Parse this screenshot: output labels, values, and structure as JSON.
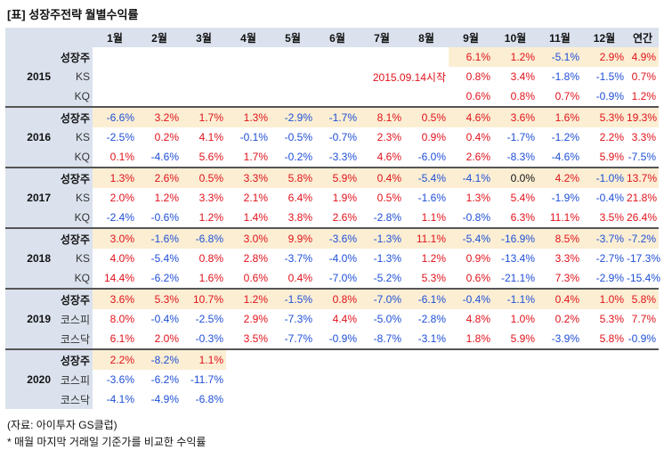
{
  "title": "[표] 성장주전략 월별수익률",
  "columns": [
    "1월",
    "2월",
    "3월",
    "4월",
    "5월",
    "6월",
    "7월",
    "8월",
    "9월",
    "10월",
    "11월",
    "12월",
    "연간"
  ],
  "note_2015": "2015.09.14시작",
  "years": [
    {
      "year": "2015",
      "rows": [
        {
          "label": "성장주",
          "values": [
            "",
            "",
            "",
            "",
            "",
            "",
            "",
            "",
            "6.1%",
            "1.2%",
            "-5.1%",
            "2.9%",
            "4.9%"
          ]
        },
        {
          "label": "KS",
          "values": [
            "",
            "",
            "",
            "",
            "",
            "",
            "",
            "",
            "0.8%",
            "3.4%",
            "-1.8%",
            "-1.5%",
            "0.7%"
          ]
        },
        {
          "label": "KQ",
          "values": [
            "",
            "",
            "",
            "",
            "",
            "",
            "",
            "",
            "0.6%",
            "0.8%",
            "0.7%",
            "-0.9%",
            "1.2%"
          ]
        }
      ]
    },
    {
      "year": "2016",
      "rows": [
        {
          "label": "성장주",
          "values": [
            "-6.6%",
            "3.2%",
            "1.7%",
            "1.3%",
            "-2.9%",
            "-1.7%",
            "8.1%",
            "0.5%",
            "4.6%",
            "3.6%",
            "1.6%",
            "5.3%",
            "19.3%"
          ]
        },
        {
          "label": "KS",
          "values": [
            "-2.5%",
            "0.2%",
            "4.1%",
            "-0.1%",
            "-0.5%",
            "-0.7%",
            "2.3%",
            "0.9%",
            "0.4%",
            "-1.7%",
            "-1.2%",
            "2.2%",
            "3.3%"
          ]
        },
        {
          "label": "KQ",
          "values": [
            "0.1%",
            "-4.6%",
            "5.6%",
            "1.7%",
            "-0.2%",
            "-3.3%",
            "4.6%",
            "-6.0%",
            "2.6%",
            "-8.3%",
            "-4.6%",
            "5.9%",
            "-7.5%"
          ]
        }
      ]
    },
    {
      "year": "2017",
      "rows": [
        {
          "label": "성장주",
          "values": [
            "1.3%",
            "2.6%",
            "0.5%",
            "3.3%",
            "5.8%",
            "5.9%",
            "0.4%",
            "-5.4%",
            "-4.1%",
            "0.0%",
            "4.2%",
            "-1.0%",
            "13.7%"
          ]
        },
        {
          "label": "KS",
          "values": [
            "2.0%",
            "1.2%",
            "3.3%",
            "2.1%",
            "6.4%",
            "1.9%",
            "0.5%",
            "-1.6%",
            "1.3%",
            "5.4%",
            "-1.9%",
            "-0.4%",
            "21.8%"
          ]
        },
        {
          "label": "KQ",
          "values": [
            "-2.4%",
            "-0.6%",
            "1.2%",
            "1.4%",
            "3.8%",
            "2.6%",
            "-2.8%",
            "1.1%",
            "-0.8%",
            "6.3%",
            "11.1%",
            "3.5%",
            "26.4%"
          ]
        }
      ]
    },
    {
      "year": "2018",
      "rows": [
        {
          "label": "성장주",
          "values": [
            "3.0%",
            "-1.6%",
            "-6.8%",
            "3.0%",
            "9.9%",
            "-3.6%",
            "-1.3%",
            "11.1%",
            "-5.4%",
            "-16.9%",
            "8.5%",
            "-3.7%",
            "-7.2%"
          ]
        },
        {
          "label": "KS",
          "values": [
            "4.0%",
            "-5.4%",
            "0.8%",
            "2.8%",
            "-3.7%",
            "-4.0%",
            "-1.3%",
            "1.2%",
            "0.9%",
            "-13.4%",
            "3.3%",
            "-2.7%",
            "-17.3%"
          ]
        },
        {
          "label": "KQ",
          "values": [
            "14.4%",
            "-6.2%",
            "1.6%",
            "0.6%",
            "0.4%",
            "-7.0%",
            "-5.2%",
            "5.3%",
            "0.6%",
            "-21.1%",
            "7.3%",
            "-2.9%",
            "-15.4%"
          ]
        }
      ]
    },
    {
      "year": "2019",
      "rows": [
        {
          "label": "성장주",
          "values": [
            "3.6%",
            "5.3%",
            "10.7%",
            "1.2%",
            "-1.5%",
            "0.8%",
            "-7.0%",
            "-6.1%",
            "-0.4%",
            "-1.1%",
            "0.4%",
            "1.0%",
            "5.8%"
          ]
        },
        {
          "label": "코스피",
          "values": [
            "8.0%",
            "-0.4%",
            "-2.5%",
            "2.9%",
            "-7.3%",
            "4.4%",
            "-5.0%",
            "-2.8%",
            "4.8%",
            "1.0%",
            "0.2%",
            "5.3%",
            "7.7%"
          ]
        },
        {
          "label": "코스닥",
          "values": [
            "6.1%",
            "2.0%",
            "-0.3%",
            "3.5%",
            "-7.7%",
            "-0.9%",
            "-8.7%",
            "-3.1%",
            "1.8%",
            "5.9%",
            "-3.9%",
            "5.8%",
            "-0.9%"
          ]
        }
      ]
    },
    {
      "year": "2020",
      "rows": [
        {
          "label": "성장주",
          "values": [
            "2.2%",
            "-8.2%",
            "1.1%",
            "",
            "",
            "",
            "",
            "",
            "",
            "",
            "",
            "",
            ""
          ]
        },
        {
          "label": "코스피",
          "values": [
            "-3.6%",
            "-6.2%",
            "-11.7%",
            "",
            "",
            "",
            "",
            "",
            "",
            "",
            "",
            "",
            ""
          ]
        },
        {
          "label": "코스닥",
          "values": [
            "-4.1%",
            "-4.9%",
            "-6.8%",
            "",
            "",
            "",
            "",
            "",
            "",
            "",
            "",
            "",
            ""
          ]
        }
      ]
    }
  ],
  "source": "(자료: 아이투자 GS클럽)",
  "footnote": "* 매월 마지막 거래일 기준가를 비교한 수익률"
}
